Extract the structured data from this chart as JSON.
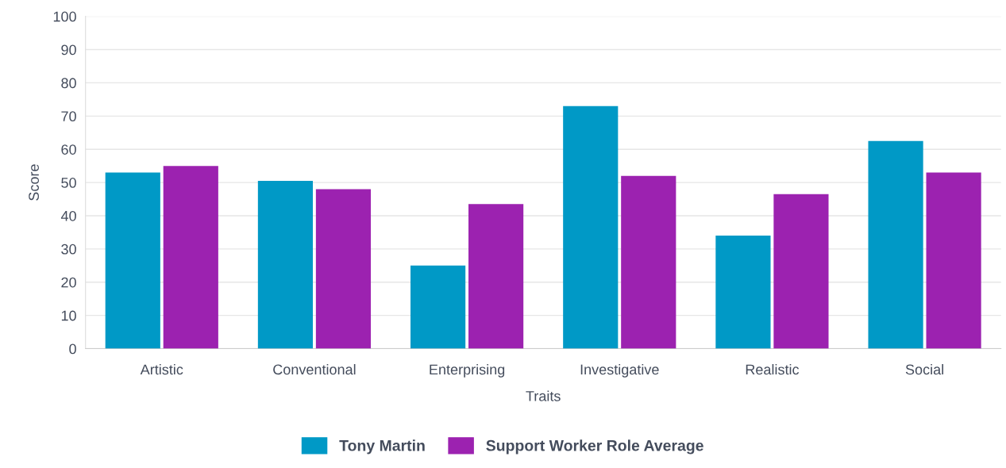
{
  "chart_data": {
    "type": "bar",
    "xlabel": "Traits",
    "ylabel": "Score",
    "categories": [
      "Artistic",
      "Conventional",
      "Enterprising",
      "Investigative",
      "Realistic",
      "Social"
    ],
    "series": [
      {
        "name": "Tony Martin",
        "color": "#0099c6",
        "values": [
          53,
          50.5,
          25,
          73,
          34,
          62.5
        ]
      },
      {
        "name": "Support Worker Role Average",
        "color": "#9c22b0",
        "values": [
          55,
          48,
          43.5,
          52,
          46.5,
          53
        ]
      }
    ],
    "ylim": [
      0,
      100
    ],
    "yticks": [
      0,
      10,
      20,
      30,
      40,
      50,
      60,
      70,
      80,
      90,
      100
    ],
    "grid": "y",
    "legend": "bottom"
  }
}
